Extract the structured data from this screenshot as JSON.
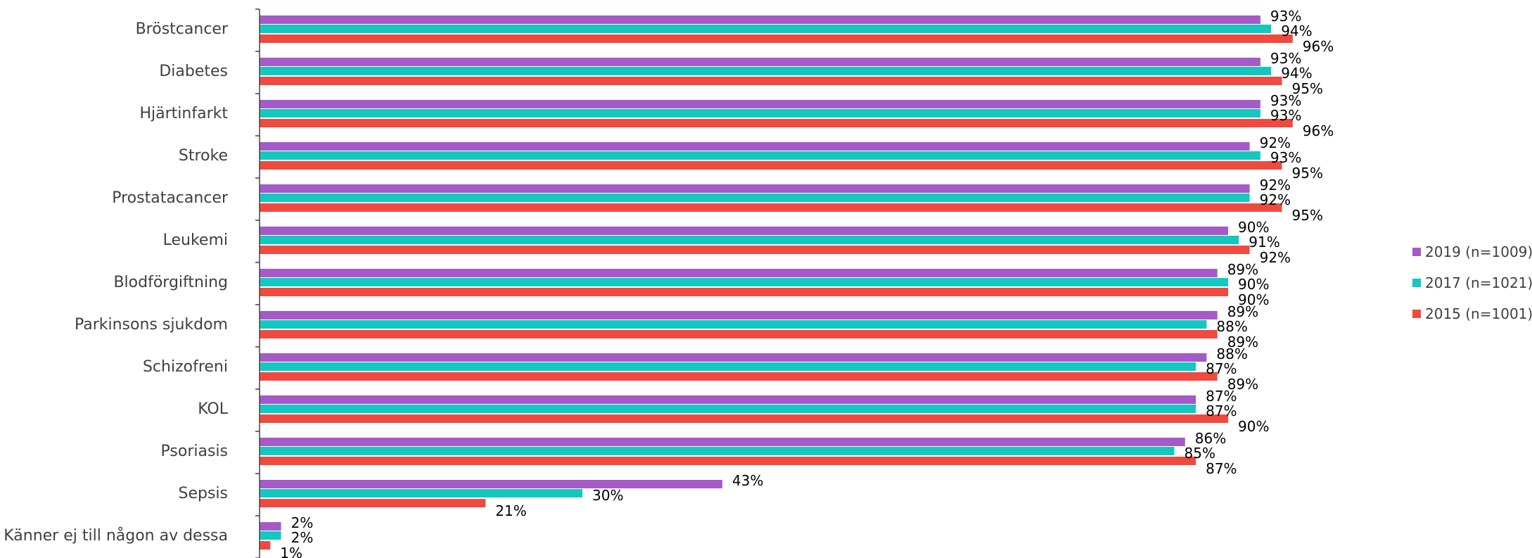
{
  "chart_data": {
    "type": "bar",
    "orientation": "horizontal",
    "categories": [
      "Bröstcancer",
      "Diabetes",
      "Hjärtinfarkt",
      "Stroke",
      "Prostatacancer",
      "Leukemi",
      "Blodförgiftning",
      "Parkinsons sjukdom",
      "Schizofreni",
      "KOL",
      "Psoriasis",
      "Sepsis",
      "Känner ej till någon av dessa"
    ],
    "series": [
      {
        "name": "2019 (n=1009)",
        "color": "#a55ac8",
        "values": [
          93,
          93,
          93,
          92,
          92,
          90,
          89,
          89,
          88,
          87,
          86,
          43,
          2
        ],
        "labels": [
          "93%",
          "93%",
          "93%",
          "92%",
          "92%",
          "90%",
          "89%",
          "89%",
          "88%",
          "87%",
          "86%",
          "43%",
          "2%"
        ]
      },
      {
        "name": "2017 (n=1021)",
        "color": "#14c8c0",
        "values": [
          94,
          94,
          93,
          93,
          92,
          91,
          90,
          88,
          87,
          87,
          85,
          30,
          2
        ],
        "labels": [
          "94%",
          "94%",
          "93%",
          "93%",
          "92%",
          "91%",
          "90%",
          "88%",
          "87%",
          "87%",
          "85%",
          "30%",
          "2%"
        ]
      },
      {
        "name": "2015 (n=1001)",
        "color": "#f04a40",
        "values": [
          96,
          95,
          96,
          95,
          95,
          92,
          90,
          89,
          89,
          90,
          87,
          21,
          1
        ],
        "labels": [
          "96%",
          "95%",
          "96%",
          "95%",
          "95%",
          "92%",
          "90%",
          "89%",
          "89%",
          "90%",
          "87%",
          "21%",
          "1%"
        ]
      }
    ],
    "xlim": [
      0,
      100
    ],
    "grid": false,
    "legend_position": "right"
  }
}
